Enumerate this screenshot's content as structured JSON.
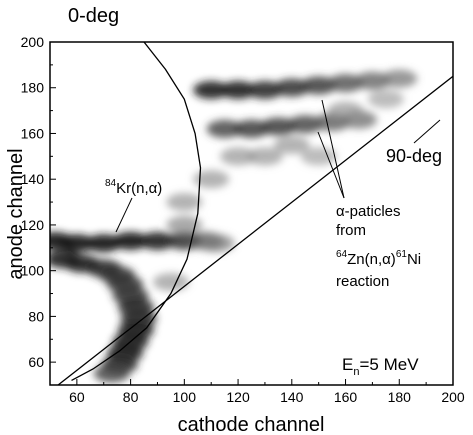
{
  "chart_data": {
    "type": "heatmap",
    "xlabel": "cathode channel",
    "ylabel": "anode channel",
    "xlim": [
      50,
      200
    ],
    "ylim": [
      50,
      200
    ],
    "x_ticks": [
      60,
      80,
      100,
      120,
      140,
      160,
      180,
      200
    ],
    "y_ticks": [
      60,
      80,
      100,
      120,
      140,
      160,
      180,
      200
    ],
    "grid": false,
    "curves": [
      {
        "label": "0-deg",
        "points": [
          [
            73,
            214
          ],
          [
            85,
            200
          ],
          [
            93,
            188
          ],
          [
            100,
            175
          ],
          [
            104,
            160
          ],
          [
            106,
            145
          ],
          [
            105,
            125
          ],
          [
            101,
            105
          ],
          [
            95,
            90
          ],
          [
            86,
            75
          ],
          [
            76,
            65
          ],
          [
            66,
            57
          ],
          [
            58,
            52
          ]
        ]
      },
      {
        "label": "90-deg",
        "points": [
          [
            53,
            50
          ],
          [
            200,
            185
          ]
        ]
      }
    ],
    "density_regions": [
      {
        "name": "84Kr(n,a)",
        "points": [
          [
            52,
            113,
            0.95
          ],
          [
            60,
            112,
            0.95
          ],
          [
            70,
            112,
            0.95
          ],
          [
            80,
            113,
            0.95
          ],
          [
            90,
            113,
            0.9
          ],
          [
            100,
            113,
            0.8
          ],
          [
            108,
            113,
            0.6
          ],
          [
            112,
            112,
            0.4
          ],
          [
            55,
            105,
            0.9
          ],
          [
            62,
            103,
            0.9
          ],
          [
            70,
            101,
            0.85
          ],
          [
            75,
            98,
            0.8
          ],
          [
            78,
            94,
            0.8
          ],
          [
            80,
            89,
            0.8
          ],
          [
            82,
            84,
            0.85
          ],
          [
            83,
            79,
            0.85
          ],
          [
            82,
            74,
            0.9
          ],
          [
            80,
            69,
            0.9
          ],
          [
            78,
            64,
            0.9
          ],
          [
            76,
            59,
            0.85
          ],
          [
            73,
            55,
            0.7
          ]
        ]
      },
      {
        "name": "alpha-180",
        "points": [
          [
            110,
            179,
            0.9
          ],
          [
            120,
            179,
            0.9
          ],
          [
            130,
            179,
            0.85
          ],
          [
            140,
            180,
            0.8
          ],
          [
            150,
            181,
            0.75
          ],
          [
            160,
            182,
            0.65
          ],
          [
            170,
            183,
            0.55
          ],
          [
            180,
            184,
            0.45
          ]
        ]
      },
      {
        "name": "alpha-160",
        "points": [
          [
            115,
            162,
            0.7
          ],
          [
            125,
            162,
            0.75
          ],
          [
            135,
            163,
            0.75
          ],
          [
            145,
            164,
            0.7
          ],
          [
            155,
            165,
            0.6
          ],
          [
            165,
            166,
            0.5
          ]
        ]
      },
      {
        "name": "diffuse",
        "points": [
          [
            100,
            130,
            0.3
          ],
          [
            110,
            140,
            0.3
          ],
          [
            120,
            150,
            0.3
          ],
          [
            130,
            150,
            0.3
          ],
          [
            140,
            155,
            0.3
          ],
          [
            150,
            150,
            0.25
          ],
          [
            95,
            95,
            0.3
          ],
          [
            100,
            120,
            0.35
          ],
          [
            160,
            170,
            0.3
          ],
          [
            175,
            175,
            0.25
          ]
        ]
      }
    ],
    "annotations": [
      {
        "id": "zero-deg",
        "text": "0-deg"
      },
      {
        "id": "ninety-deg",
        "text": "90-deg"
      },
      {
        "id": "kr",
        "sup": "84",
        "text": "Kr(n,α)"
      },
      {
        "id": "alpha",
        "lines": [
          "α-paticles",
          "from"
        ],
        "zn_sup": "64",
        "zn": "Zn(n,α)",
        "ni_sup": "61",
        "ni": "Ni",
        "last": "reaction"
      },
      {
        "id": "energy",
        "main": "E",
        "sub": "n",
        "rest": "=5 MeV"
      }
    ]
  }
}
